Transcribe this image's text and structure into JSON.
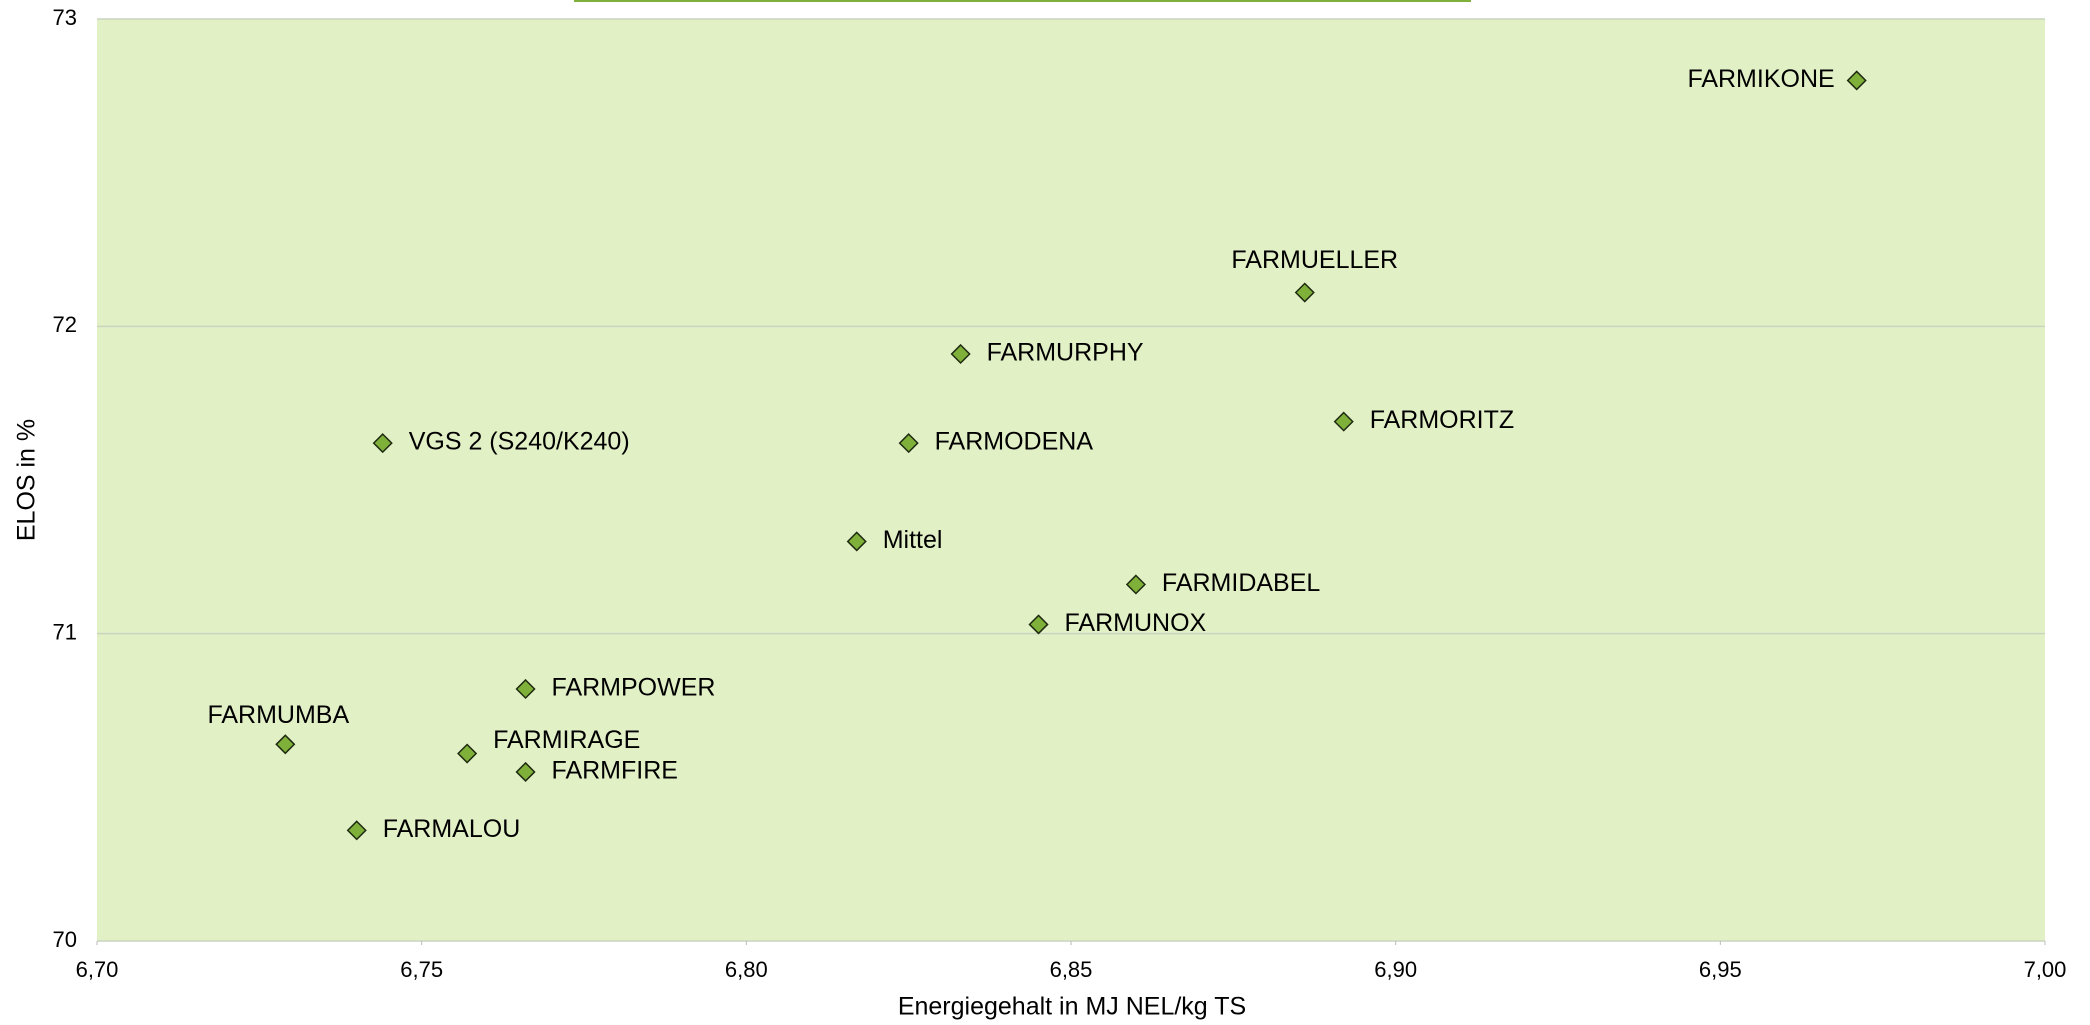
{
  "chart_data": {
    "type": "scatter",
    "xlabel": "Energiegehalt in MJ NEL/kg TS",
    "ylabel": "ELOS in %",
    "labels": [
      "FARMIKONE",
      "FARMUELLER",
      "FARMURPHY",
      "FARMORITZ",
      "VGS 2 (S240/K240)",
      "FARMODENA",
      "Mittel",
      "FARMIDABEL",
      "FARMUNOX",
      "FARMPOWER",
      "FARMUMBA",
      "FARMIRAGE",
      "FARMFIRE",
      "FARMALOU"
    ],
    "x": [
      6.971,
      6.886,
      6.833,
      6.892,
      6.744,
      6.825,
      6.817,
      6.86,
      6.845,
      6.766,
      6.729,
      6.757,
      6.766,
      6.74
    ],
    "values": [
      72.8,
      72.11,
      71.91,
      71.69,
      71.62,
      71.62,
      71.3,
      71.16,
      71.03,
      70.82,
      70.64,
      70.61,
      70.55,
      70.36
    ],
    "color": "#7fb13a",
    "background": "#e2f0c6",
    "xlim": [
      6.7,
      7.0
    ],
    "xticks": [
      {
        "value": 6.7,
        "label": "6,70"
      },
      {
        "value": 6.75,
        "label": "6,75"
      },
      {
        "value": 6.8,
        "label": "6,80"
      },
      {
        "value": 6.85,
        "label": "6,85"
      },
      {
        "value": 6.9,
        "label": "6,90"
      },
      {
        "value": 6.95,
        "label": "6,95"
      },
      {
        "value": 7.0,
        "label": "7,00"
      }
    ],
    "ylim": [
      70,
      73
    ],
    "yticks": [
      70,
      71,
      72,
      73
    ],
    "grid": true
  }
}
